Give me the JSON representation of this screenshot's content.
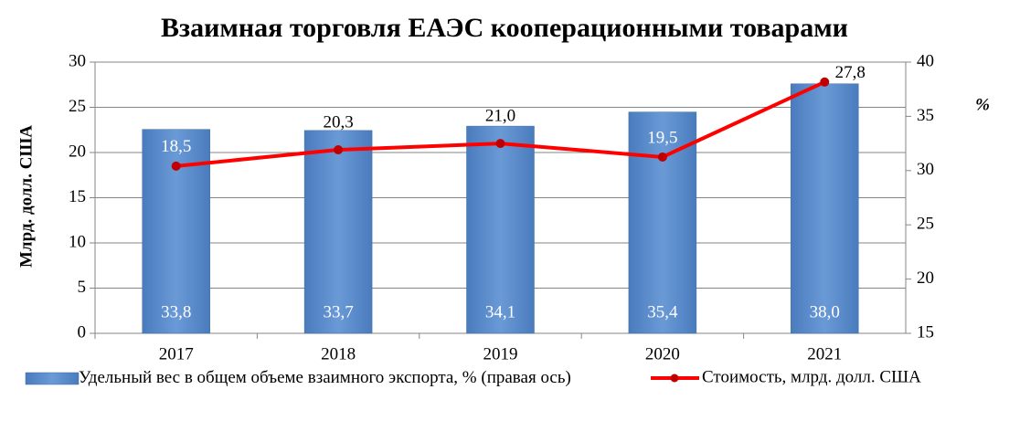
{
  "chart_data": {
    "type": "bar",
    "title": "Взаимная торговля ЕАЭС кооперационными товарами",
    "ylabel": "Млрд. долл. США",
    "y2label": "%",
    "categories": [
      "2017",
      "2018",
      "2019",
      "2020",
      "2021"
    ],
    "series": [
      {
        "name": "Удельный вес в общем объеме взаимного экспорта, % (правая ось)",
        "type": "bar",
        "axis": "y2",
        "color": "#4f81bd",
        "values": [
          33.8,
          33.7,
          34.1,
          35.4,
          38.0
        ],
        "value_labels": [
          "33,8",
          "33,7",
          "34,1",
          "35,4",
          "38,0"
        ]
      },
      {
        "name": "Стоимость, млрд. долл. США",
        "type": "line",
        "color": "#ff0000",
        "values": [
          18.5,
          20.3,
          21.0,
          19.5,
          27.8
        ],
        "value_labels": [
          "18,5",
          "20,3",
          "21,0",
          "19,5",
          "27,8"
        ]
      }
    ],
    "ylim": [
      0,
      30
    ],
    "yticks": [
      0,
      5,
      10,
      15,
      20,
      25,
      30
    ],
    "y2lim": [
      15,
      40
    ],
    "y2ticks": [
      15,
      20,
      25,
      30,
      35,
      40
    ],
    "legend": "bottom"
  }
}
